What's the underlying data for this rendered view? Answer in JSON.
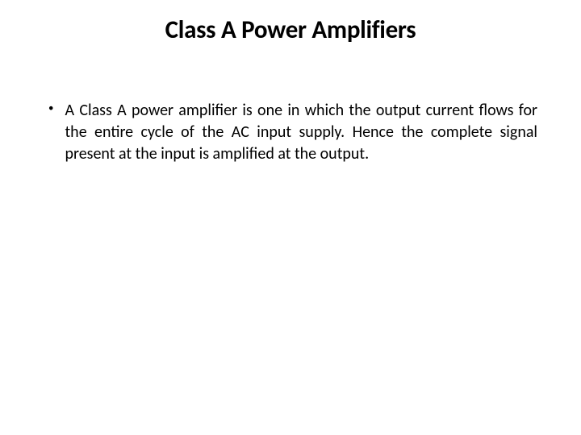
{
  "slide": {
    "title": "Class A Power Amplifiers",
    "title_fontsize": 31,
    "title_color": "#000000",
    "title_weight": 700,
    "background_color": "#ffffff",
    "bullets": [
      {
        "text": "A Class A power amplifier is one in which the output current flows for the entire cycle of the AC input supply. Hence the complete signal present at the input is amplified at the output."
      }
    ],
    "body_fontsize": 20,
    "body_color": "#000000",
    "bullet_marker": "•",
    "text_align": "justify"
  }
}
